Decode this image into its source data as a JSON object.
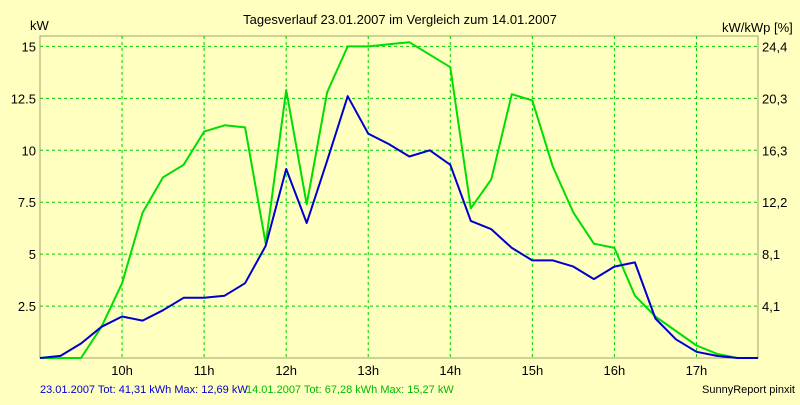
{
  "chart_data": {
    "type": "line",
    "title": "Tagesverlauf 23.01.2007 im Vergleich zum 14.01.2007",
    "left_axis_unit": "kW",
    "right_axis_unit": "kW/kWp [%]",
    "ylim": [
      0,
      15.5
    ],
    "y_ticks": [
      "15",
      "12.5",
      "10",
      "7.5",
      "5",
      "2.5"
    ],
    "right_ticks": [
      "24,4",
      "20,3",
      "16,3",
      "12,2",
      "8,1",
      "4,1"
    ],
    "xlim": [
      9.0,
      17.75
    ],
    "x_ticks": [
      "10h",
      "11h",
      "12h",
      "13h",
      "14h",
      "15h",
      "16h",
      "17h"
    ],
    "grid": true,
    "series": [
      {
        "name": "23.01.2007",
        "color": "#0000cc",
        "x": [
          9.0,
          9.25,
          9.5,
          9.75,
          10.0,
          10.25,
          10.5,
          10.75,
          11.0,
          11.25,
          11.5,
          11.75,
          12.0,
          12.25,
          12.5,
          12.75,
          13.0,
          13.25,
          13.5,
          13.75,
          14.0,
          14.25,
          14.5,
          14.75,
          15.0,
          15.25,
          15.5,
          15.75,
          16.0,
          16.25,
          16.5,
          16.75,
          17.0,
          17.25,
          17.5,
          17.75
        ],
        "values": [
          0.0,
          0.1,
          0.7,
          1.5,
          2.0,
          1.8,
          2.3,
          2.9,
          2.9,
          3.0,
          3.6,
          5.4,
          9.1,
          6.5,
          9.5,
          12.6,
          10.8,
          10.3,
          9.7,
          10.0,
          9.3,
          6.6,
          6.2,
          5.3,
          4.7,
          4.7,
          4.4,
          3.8,
          4.4,
          4.6,
          1.9,
          0.9,
          0.3,
          0.1,
          0.0,
          0.0
        ]
      },
      {
        "name": "14.01.2007",
        "color": "#00dd00",
        "x": [
          9.0,
          9.25,
          9.5,
          9.75,
          10.0,
          10.25,
          10.5,
          10.75,
          11.0,
          11.25,
          11.5,
          11.75,
          12.0,
          12.25,
          12.5,
          12.75,
          13.0,
          13.25,
          13.5,
          13.75,
          14.0,
          14.25,
          14.5,
          14.75,
          15.0,
          15.25,
          15.5,
          15.75,
          16.0,
          16.25,
          16.5,
          16.75,
          17.0,
          17.25,
          17.5,
          17.75
        ],
        "values": [
          0.0,
          0.0,
          0.0,
          1.5,
          3.6,
          7.0,
          8.7,
          9.3,
          10.9,
          11.2,
          11.1,
          5.5,
          12.9,
          7.4,
          12.8,
          15.0,
          15.0,
          15.1,
          15.2,
          14.6,
          14.0,
          7.2,
          8.6,
          12.7,
          12.4,
          9.2,
          7.0,
          5.5,
          5.3,
          3.0,
          2.0,
          1.3,
          0.6,
          0.2,
          0.0,
          0.0
        ]
      }
    ]
  },
  "footer": {
    "series1_summary": "23.01.2007 Tot: 41,31 kWh Max: 12,69 kW",
    "series2_summary": "14.01.2007 Tot: 67,28 kWh Max: 15,27 kW",
    "credit": "SunnyReport pinxit"
  },
  "colors": {
    "background": "#ffffc0",
    "grid": "#00cc00",
    "axis_text": "#000000"
  }
}
